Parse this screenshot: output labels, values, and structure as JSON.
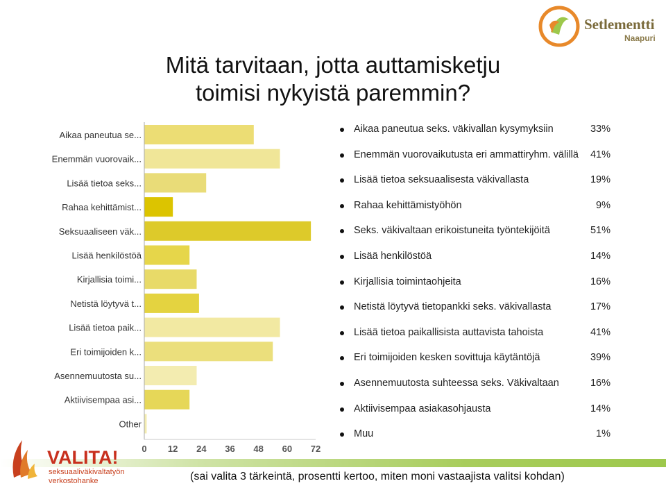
{
  "title": {
    "line1": "Mitä tarvitaan, jotta auttamisketju",
    "line2": "toimisi nykyistä paremmin?"
  },
  "logos": {
    "top_name": "Setlementti",
    "top_sub": "Naapuri",
    "bottom_name": "VALITA!",
    "bottom_sub1": "seksuaaliväkivaltatyön",
    "bottom_sub2": "verkostohanke"
  },
  "colors": {
    "bar_colors": [
      "#ecdd74",
      "#f0e698",
      "#e9dc78",
      "#dcc400",
      "#ddca2a",
      "#e6d64a",
      "#e8da68",
      "#e4d340",
      "#f2e9a2",
      "#ebdf7c",
      "#f3ecb0",
      "#e6d758",
      "#f3ecb0"
    ],
    "accent_green": "#9dc84c"
  },
  "chart_data": {
    "type": "bar",
    "orientation": "horizontal",
    "categories": [
      "Aikaa paneutua se...",
      "Enemmän vuorovaik...",
      "Lisää tietoa seks...",
      "Rahaa kehittämist...",
      "Seksuaaliseen väk...",
      "Lisää henkilöstöä",
      "Kirjallisia toimi...",
      "Netistä löytyvä t...",
      "Lisää tietoa paik...",
      "Eri toimijoiden k...",
      "Asennemuutosta su...",
      "Aktiivisempaa asi...",
      "Other"
    ],
    "values": [
      46,
      57,
      26,
      12,
      70,
      19,
      22,
      23,
      57,
      54,
      22,
      19,
      1
    ],
    "xlim": [
      0,
      72
    ],
    "xticks": [
      "0",
      "12",
      "24",
      "36",
      "48",
      "60",
      "72"
    ],
    "grid": false
  },
  "list": [
    {
      "text": "Aikaa paneutua seks. väkivallan kysymyksiin",
      "pct": "33%"
    },
    {
      "text": "Enemmän vuorovaikutusta eri ammattiryhm. välillä",
      "pct": "41%"
    },
    {
      "text": "Lisää tietoa seksuaalisesta väkivallasta",
      "pct": "19%"
    },
    {
      "text": "Rahaa kehittämistyöhön",
      "pct": "9%"
    },
    {
      "text": "Seks. väkivaltaan erikoistuneita työntekijöitä",
      "pct": "51%"
    },
    {
      "text": "Lisää henkilöstöä",
      "pct": "14%"
    },
    {
      "text": "Kirjallisia toimintaohjeita",
      "pct": "16%"
    },
    {
      "text": "Netistä löytyvä tietopankki seks. väkivallasta",
      "pct": "17%"
    },
    {
      "text": "Lisää tietoa paikallisista auttavista tahoista",
      "pct": "41%"
    },
    {
      "text": "Eri toimijoiden kesken sovittuja käytäntöjä",
      "pct": "39%"
    },
    {
      "text": "Asennemuutosta suhteessa seks. Väkivaltaan",
      "pct": "16%"
    },
    {
      "text": "Aktiivisempaa asiakasohjausta",
      "pct": "14%"
    },
    {
      "text": "Muu",
      "pct": "1%"
    }
  ],
  "footnote": "(sai valita 3 tärkeintä, prosentti kertoo, miten moni vastaajista valitsi kohdan)"
}
